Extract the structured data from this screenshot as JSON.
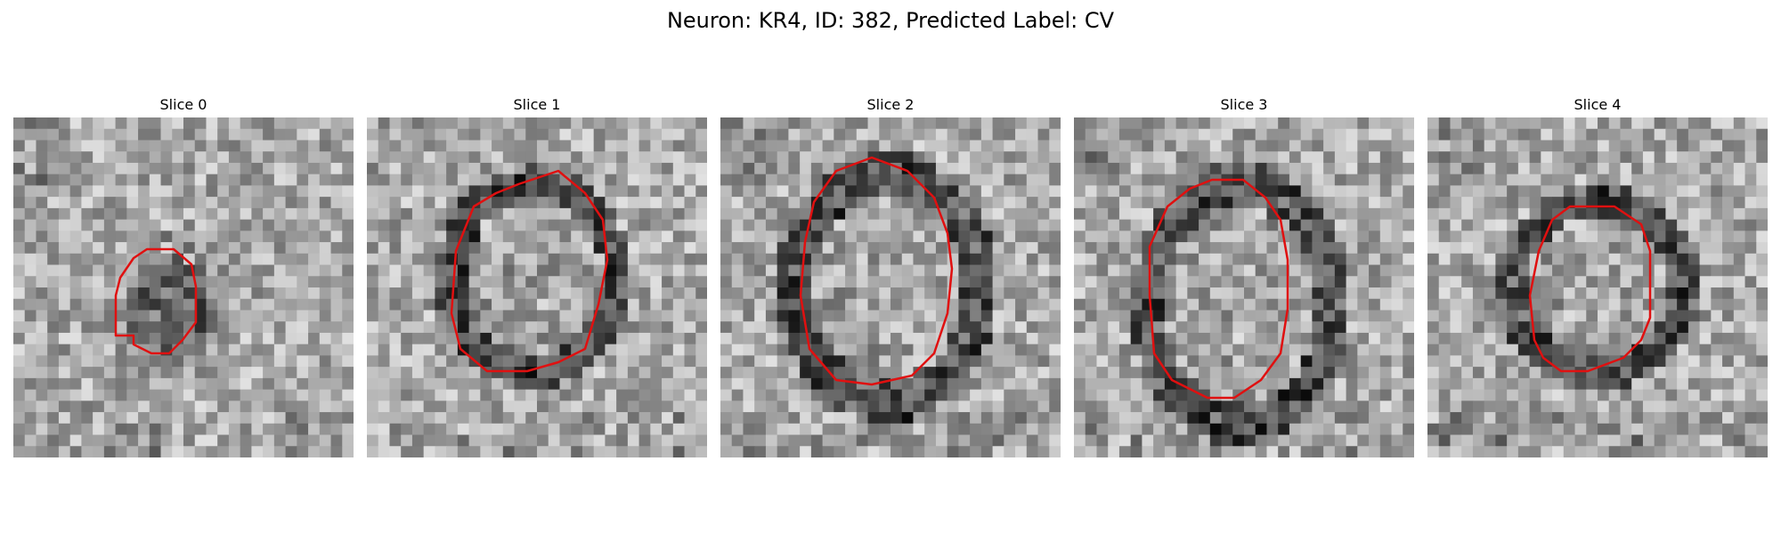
{
  "figure": {
    "title": "Neuron: KR4, ID: 382, Predicted Label: CV",
    "contour_color": "#e01010",
    "slices": [
      {
        "label": "Slice 0"
      },
      {
        "label": "Slice 1"
      },
      {
        "label": "Slice 2"
      },
      {
        "label": "Slice 3"
      },
      {
        "label": "Slice 4"
      }
    ]
  }
}
